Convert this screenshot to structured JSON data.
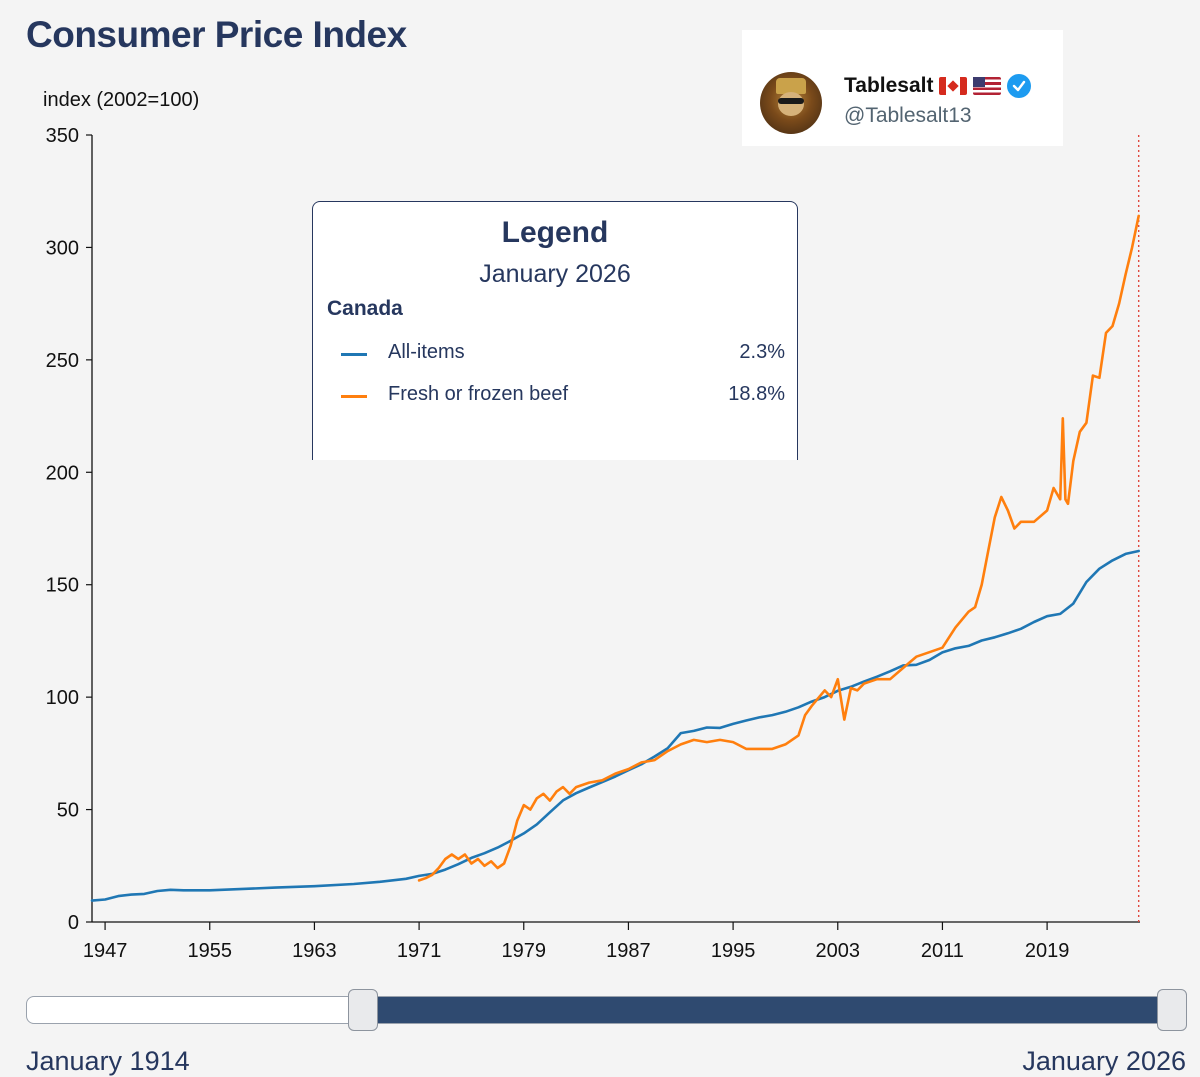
{
  "page": {
    "title": "Consumer Price Index"
  },
  "author": {
    "name": "Tablesalt",
    "handle": "@Tablesalt13",
    "flags": [
      "canada-flag-icon",
      "us-flag-icon"
    ],
    "verified_icon": "verified-badge-icon",
    "verified_color": "#1d9bf0"
  },
  "legend": {
    "title": "Legend",
    "date": "January 2026",
    "geography": "Canada",
    "items": [
      {
        "label": "All-items",
        "value": "2.3%",
        "color": "#1f77b4"
      },
      {
        "label": "Fresh or frozen beef",
        "value": "18.8%",
        "color": "#ff7f0e"
      }
    ]
  },
  "slider": {
    "start_label": "January 1914",
    "end_label": "January 2026",
    "selected_start_fraction": 0.295,
    "selected_end_fraction": 1.0
  },
  "chart_data": {
    "type": "line",
    "title": "Consumer Price Index",
    "xlabel": "",
    "ylabel": "index (2002=100)",
    "xlim": [
      1946.0,
      2026.1
    ],
    "ylim": [
      0,
      350
    ],
    "x_ticks": [
      1947,
      1955,
      1963,
      1971,
      1979,
      1987,
      1995,
      2003,
      2011,
      2019
    ],
    "y_ticks": [
      0,
      50,
      100,
      150,
      200,
      250,
      300,
      350
    ],
    "current_date_marker": 2026.0,
    "series": [
      {
        "name": "All-items",
        "color": "#1f77b4",
        "x": [
          1946.0,
          1947,
          1948,
          1949,
          1950,
          1951,
          1952,
          1953,
          1955,
          1958,
          1960,
          1963,
          1966,
          1968,
          1970,
          1971,
          1972,
          1973,
          1974,
          1975,
          1976,
          1977,
          1978,
          1979,
          1980,
          1981,
          1982,
          1983,
          1984,
          1985,
          1986,
          1987,
          1988,
          1989,
          1990,
          1991,
          1992,
          1993,
          1994,
          1995,
          1996,
          1997,
          1998,
          1999,
          2000,
          2001,
          2002,
          2003,
          2004,
          2005,
          2006,
          2007,
          2008,
          2009,
          2010,
          2011,
          2012,
          2013,
          2014,
          2015,
          2016,
          2017,
          2018,
          2019,
          2020,
          2021,
          2022,
          2023,
          2024,
          2025,
          2026.0
        ],
        "y": [
          9.5,
          10.0,
          11.5,
          12.2,
          12.5,
          13.8,
          14.3,
          14.1,
          14.1,
          14.8,
          15.3,
          15.9,
          16.9,
          17.9,
          19.2,
          20.5,
          21.4,
          23.3,
          25.7,
          28.5,
          30.6,
          33.1,
          36.1,
          39.4,
          43.4,
          48.8,
          54.1,
          57.3,
          59.8,
          62.2,
          64.7,
          67.5,
          70.2,
          73.6,
          77.3,
          84.0,
          85.0,
          86.5,
          86.3,
          88.1,
          89.6,
          91.0,
          92.0,
          93.5,
          95.5,
          98.0,
          100.0,
          102.8,
          104.6,
          106.9,
          109.1,
          111.5,
          114.1,
          114.4,
          116.5,
          119.9,
          121.7,
          122.8,
          125.2,
          126.6,
          128.4,
          130.4,
          133.4,
          136.0,
          137.0,
          141.6,
          151.2,
          157.1,
          160.8,
          163.7,
          165.0
        ]
      },
      {
        "name": "Fresh or frozen beef",
        "color": "#ff7f0e",
        "x": [
          1971.0,
          1971.5,
          1972,
          1972.5,
          1973,
          1973.5,
          1974,
          1974.5,
          1975,
          1975.5,
          1976,
          1976.5,
          1977,
          1977.5,
          1978,
          1978.5,
          1979,
          1979.5,
          1980,
          1980.5,
          1981,
          1981.5,
          1982,
          1982.5,
          1983,
          1984,
          1985,
          1986,
          1987,
          1988,
          1989,
          1990,
          1991,
          1992,
          1993,
          1994,
          1995,
          1996,
          1997,
          1998,
          1999,
          2000,
          2000.5,
          2001,
          2002,
          2002.5,
          2003,
          2003.5,
          2004,
          2004.5,
          2005,
          2006,
          2007,
          2008,
          2009,
          2010,
          2011,
          2012,
          2013,
          2013.5,
          2014,
          2014.5,
          2015,
          2015.5,
          2016,
          2016.5,
          2017,
          2018,
          2019,
          2019.5,
          2020,
          2020.2,
          2020.4,
          2020.6,
          2021,
          2021.5,
          2022,
          2022.5,
          2023,
          2023.5,
          2024,
          2024.5,
          2025,
          2025.5,
          2026.0
        ],
        "y": [
          18.5,
          19.5,
          21.0,
          24.0,
          28.0,
          30.0,
          28.0,
          30.0,
          26.0,
          28.0,
          25.0,
          27.0,
          24.0,
          26.0,
          34.0,
          45.0,
          52.0,
          50.0,
          55.0,
          57.0,
          54.0,
          58.0,
          60.0,
          57.0,
          60.0,
          62.0,
          63.0,
          66.0,
          68.0,
          71.0,
          72.0,
          76.0,
          79.0,
          81.0,
          80.0,
          81.0,
          80.0,
          77.0,
          77.0,
          77.0,
          79.0,
          83.0,
          92.0,
          96.0,
          103.0,
          100.0,
          108.0,
          90.0,
          104.0,
          103.0,
          106.0,
          108.0,
          108.0,
          113.0,
          118.0,
          120.0,
          122.0,
          131.0,
          138.0,
          140.0,
          150.0,
          165.0,
          180.0,
          189.0,
          183.0,
          175.0,
          178.0,
          178.0,
          183.0,
          193.0,
          188.0,
          224.0,
          188.0,
          186.0,
          205.0,
          218.0,
          222.0,
          243.0,
          242.0,
          262.0,
          265.0,
          275.0,
          288.0,
          300.0,
          314.0
        ]
      }
    ]
  }
}
